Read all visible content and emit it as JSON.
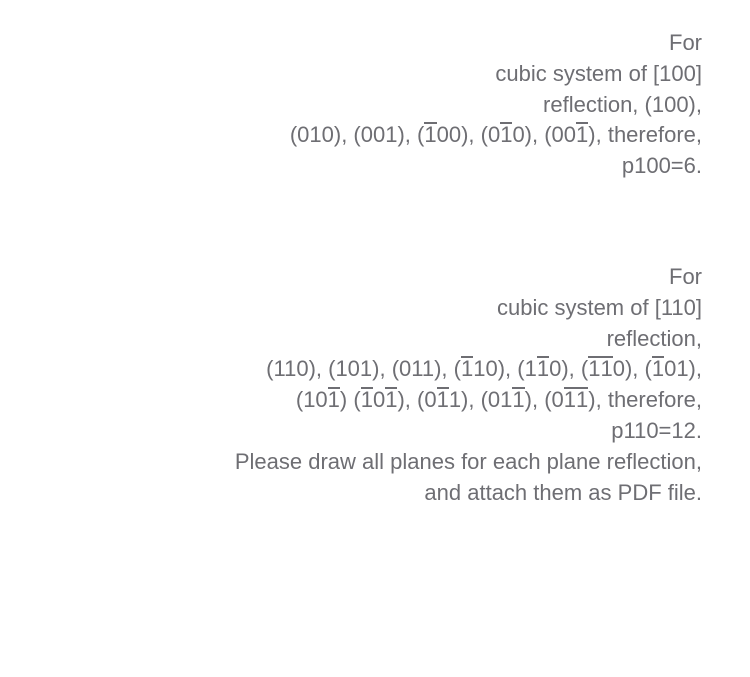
{
  "text_color": "#6e6e73",
  "background_color": "#ffffff",
  "font_size": 22,
  "block1": {
    "line1": "For",
    "line2": "cubic system of [100]",
    "line3": "reflection, (100),",
    "line4_parts": [
      "(010), (001), (",
      "1",
      "00), (0",
      "1",
      "0), (00",
      "1",
      "), therefore,"
    ],
    "line5": "p100=6."
  },
  "block2": {
    "line1": "For",
    "line2": "cubic system of [110]",
    "line3": "reflection,",
    "line4_parts": [
      "(110), (101), (011), (",
      "1",
      "10), (1",
      "1",
      "0), (",
      "1",
      "1",
      "0), (",
      "1",
      "01),"
    ],
    "line5_parts": [
      "(10",
      "1",
      ") (",
      "1",
      "0",
      "1",
      "), (0",
      "1",
      "1), (01",
      "1",
      "), (0",
      "1",
      "1",
      "), therefore,"
    ],
    "line6": "p110=12.",
    "line7": "Please draw all planes for each plane reflection,",
    "line8": "and attach them as PDF file."
  }
}
